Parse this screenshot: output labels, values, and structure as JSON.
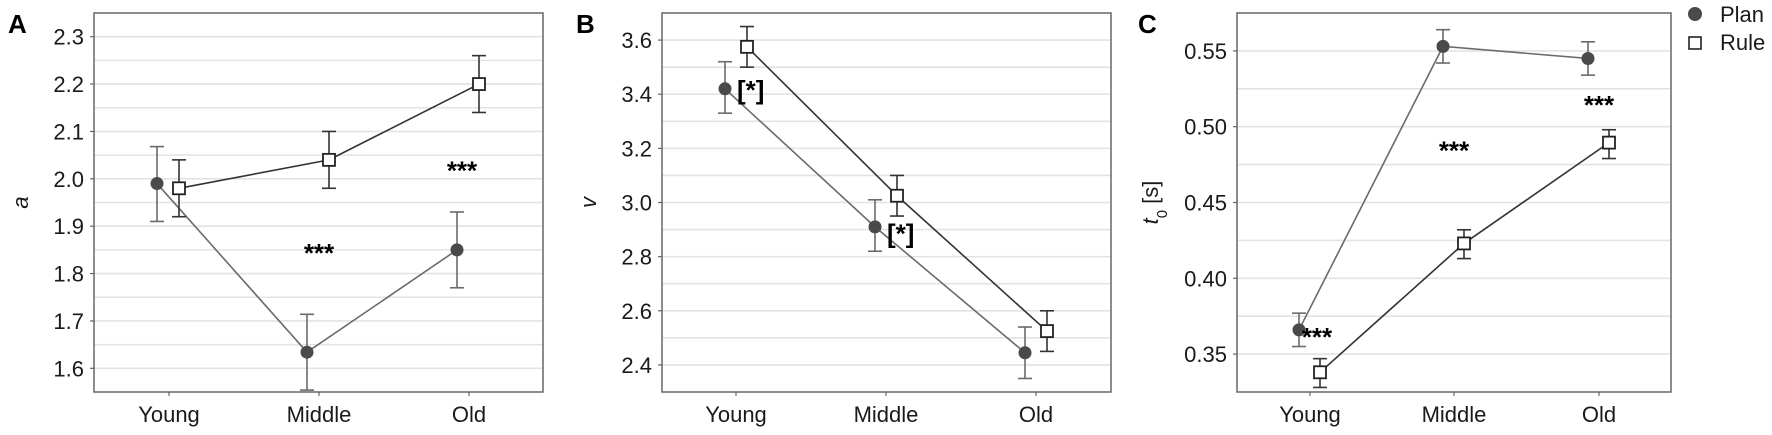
{
  "legend": {
    "items": [
      {
        "label": "Plan",
        "marker": "filled-circle",
        "color": "#4a4a4a"
      },
      {
        "label": "Rule",
        "marker": "open-square",
        "color": "#222222"
      }
    ]
  },
  "colors": {
    "plan": "#4a4a4a",
    "plan_line": "#6b6b6b",
    "rule": "#222222",
    "rule_line": "#333333",
    "grid": "#e3e3e3",
    "frame": "#666666"
  },
  "chart_data": [
    {
      "panel": "A",
      "type": "line",
      "title": "",
      "xlabel": "",
      "ylabel": "a",
      "categories": [
        "Young",
        "Middle",
        "Old"
      ],
      "ylim": [
        1.55,
        2.35
      ],
      "yticks": [
        1.6,
        1.7,
        1.8,
        1.9,
        2.0,
        2.1,
        2.2,
        2.3
      ],
      "ytick_labels": [
        "1.6",
        "1.7",
        "1.8",
        "1.9",
        "2.0",
        "2.1",
        "2.2",
        "2.3"
      ],
      "minor_gridlines": true,
      "grid": true,
      "series": [
        {
          "name": "Plan",
          "values": [
            1.99,
            1.634,
            1.85
          ],
          "err_low": [
            1.91,
            1.554,
            1.77
          ],
          "err_high": [
            2.068,
            1.714,
            1.93
          ]
        },
        {
          "name": "Rule",
          "values": [
            1.98,
            2.04,
            2.2
          ],
          "err_low": [
            1.92,
            1.98,
            2.14
          ],
          "err_high": [
            2.04,
            2.1,
            2.26
          ]
        }
      ],
      "annotations": [
        {
          "text": "***",
          "category": "Middle",
          "y": 1.845
        },
        {
          "text": "***",
          "category": "Old",
          "y": 2.02
        }
      ]
    },
    {
      "panel": "B",
      "type": "line",
      "title": "",
      "xlabel": "",
      "ylabel": "v",
      "categories": [
        "Young",
        "Middle",
        "Old"
      ],
      "ylim": [
        2.3,
        3.7
      ],
      "yticks": [
        2.4,
        2.6,
        2.8,
        3.0,
        3.2,
        3.4,
        3.6
      ],
      "ytick_labels": [
        "2.4",
        "2.6",
        "2.8",
        "3.0",
        "3.2",
        "3.4",
        "3.6"
      ],
      "minor_gridlines": true,
      "grid": true,
      "series": [
        {
          "name": "Plan",
          "values": [
            3.42,
            2.91,
            2.445
          ],
          "err_low": [
            3.33,
            2.82,
            2.35
          ],
          "err_high": [
            3.52,
            3.01,
            2.54
          ]
        },
        {
          "name": "Rule",
          "values": [
            3.575,
            3.025,
            2.525
          ],
          "err_low": [
            3.5,
            2.95,
            2.45
          ],
          "err_high": [
            3.65,
            3.1,
            2.6
          ]
        }
      ],
      "annotations": [
        {
          "text": "[*]",
          "category": "Young",
          "y": 3.42
        },
        {
          "text": "[*]",
          "category": "Middle",
          "y": 2.89
        }
      ]
    },
    {
      "panel": "C",
      "type": "line",
      "title": "",
      "xlabel": "",
      "ylabel": "t0 [s]",
      "categories": [
        "Young",
        "Middle",
        "Old"
      ],
      "ylim": [
        0.325,
        0.575
      ],
      "yticks": [
        0.35,
        0.4,
        0.45,
        0.5,
        0.55
      ],
      "ytick_labels": [
        "0.35",
        "0.40",
        "0.45",
        "0.50",
        "0.55"
      ],
      "minor_gridlines": true,
      "grid": true,
      "series": [
        {
          "name": "Plan",
          "values": [
            0.366,
            0.553,
            0.545
          ],
          "err_low": [
            0.355,
            0.542,
            0.534
          ],
          "err_high": [
            0.377,
            0.564,
            0.556
          ]
        },
        {
          "name": "Rule",
          "values": [
            0.338,
            0.423,
            0.4895
          ],
          "err_low": [
            0.328,
            0.413,
            0.479
          ],
          "err_high": [
            0.347,
            0.432,
            0.498
          ]
        }
      ],
      "annotations": [
        {
          "text": "***",
          "category": "Young",
          "y": 0.362
        },
        {
          "text": "***",
          "category": "Middle",
          "y": 0.485
        },
        {
          "text": "***",
          "category": "Old",
          "y": 0.515
        }
      ]
    }
  ]
}
